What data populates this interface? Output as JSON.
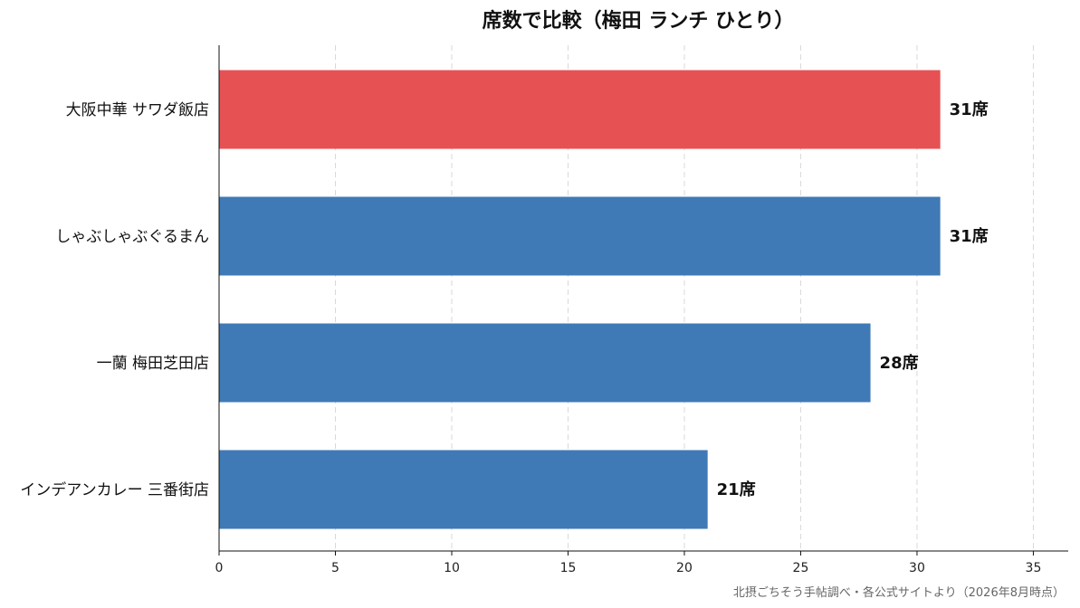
{
  "chart_data": {
    "type": "bar",
    "orientation": "horizontal",
    "title": "席数で比較（梅田 ランチ ひとり）",
    "categories": [
      "大阪中華 サワダ飯店",
      "しゃぶしゃぶぐるまん",
      "一蘭 梅田芝田店",
      "インデアンカレー 三番街店"
    ],
    "values": [
      31,
      31,
      28,
      21
    ],
    "data_labels": [
      "31席",
      "31席",
      "28席",
      "21席"
    ],
    "highlight_index": 0,
    "xlim": [
      0,
      36.5
    ],
    "xticks": [
      0,
      5,
      10,
      15,
      20,
      25,
      30,
      35
    ],
    "grid": "vertical-dashed",
    "colors": {
      "highlight": "#e65254",
      "default": "#3f7ab6"
    },
    "source_note": "北摂ごちそう手帖調べ・各公式サイトより（2026年8月時点）"
  }
}
